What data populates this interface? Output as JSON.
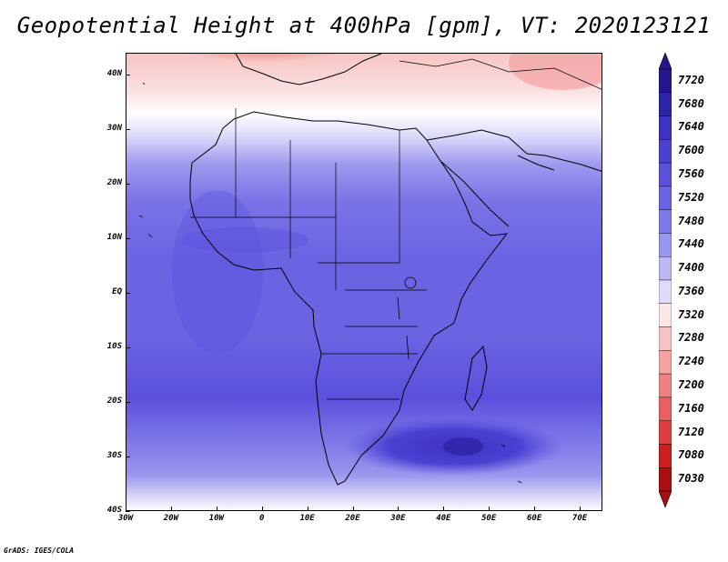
{
  "title": "Geopotential Height at 400hPa [gpm], VT: 2020123121",
  "footer": "GrADS: IGES/COLA",
  "map": {
    "lon_range": [
      -30,
      75
    ],
    "lat_range": [
      -40,
      44
    ],
    "lat_labels": [
      "40N",
      "30N",
      "20N",
      "10N",
      "EQ",
      "10S",
      "20S",
      "30S",
      "40S"
    ],
    "lon_labels": [
      "30W",
      "20W",
      "10W",
      "0",
      "10E",
      "20E",
      "30E",
      "40E",
      "50E",
      "60E",
      "70E"
    ]
  },
  "colorbar": {
    "labels": [
      "7720",
      "7680",
      "7640",
      "7600",
      "7560",
      "7520",
      "7480",
      "7440",
      "7400",
      "7360",
      "7320",
      "7280",
      "7240",
      "7200",
      "7160",
      "7120",
      "7080",
      "7030"
    ],
    "colors": [
      "#24168f",
      "#2e24a8",
      "#3d32c0",
      "#4a40d2",
      "#5a50dc",
      "#6a63e2",
      "#7f7ae8",
      "#9a97ee",
      "#bcbaf4",
      "#dedcfa",
      "#fbe5e5",
      "#f7c4c4",
      "#f3a3a3",
      "#ee8282",
      "#e86060",
      "#de3e3e",
      "#cc2020",
      "#aa0f0f"
    ]
  },
  "chart_data": {
    "type": "heatmap",
    "title": "Geopotential Height at 400hPa [gpm], VT: 2020123121",
    "variable": "Geopotential Height",
    "level": "400hPa",
    "units": "gpm",
    "valid_time": "2020123121",
    "x_range": [
      -30,
      75
    ],
    "y_range": [
      -40,
      44
    ],
    "x_ticks": [
      "30W",
      "20W",
      "10W",
      "0",
      "10E",
      "20E",
      "30E",
      "40E",
      "50E",
      "60E",
      "70E"
    ],
    "y_ticks": [
      "40N",
      "30N",
      "20N",
      "10N",
      "EQ",
      "10S",
      "20S",
      "30S",
      "40S"
    ],
    "contour_levels": [
      7030,
      7080,
      7120,
      7160,
      7200,
      7240,
      7280,
      7320,
      7360,
      7400,
      7440,
      7480,
      7520,
      7560,
      7600,
      7640,
      7680,
      7720
    ]
  }
}
